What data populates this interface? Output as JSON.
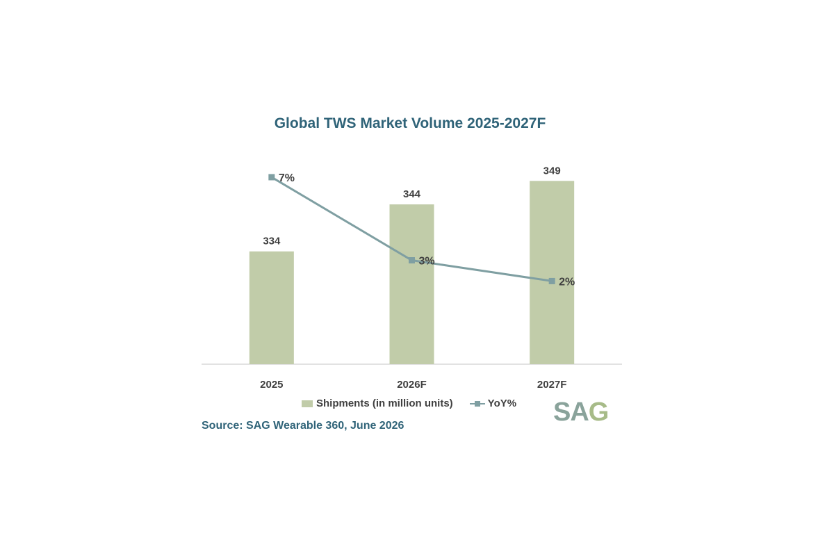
{
  "chart_data": {
    "type": "bar",
    "title": "Global TWS Market Volume 2025-2027F",
    "categories": [
      "2025",
      "2026F",
      "2027F"
    ],
    "series": [
      {
        "name": "Shipments (in million units)",
        "kind": "bar",
        "values": [
          334,
          344,
          349
        ],
        "labels": [
          "334",
          "344",
          "349"
        ]
      },
      {
        "name": "YoY%",
        "kind": "line",
        "values": [
          7,
          3,
          2
        ],
        "labels": [
          "7%",
          "3%",
          "2%"
        ]
      }
    ],
    "ylim_bars": [
      310,
      352
    ],
    "ylim_line": [
      -2,
      7.5
    ],
    "legend": "bottom",
    "grid": false
  },
  "colors": {
    "bar": "#c1cca9",
    "line": "#7f9fa2",
    "marker": "#7f9fa2",
    "title": "#2f6378",
    "axis": "#d9d9d9",
    "text": "#404040"
  },
  "source": "Source: SAG Wearable 360, June 2026",
  "logo": {
    "part1": "SA",
    "part2": "G"
  }
}
